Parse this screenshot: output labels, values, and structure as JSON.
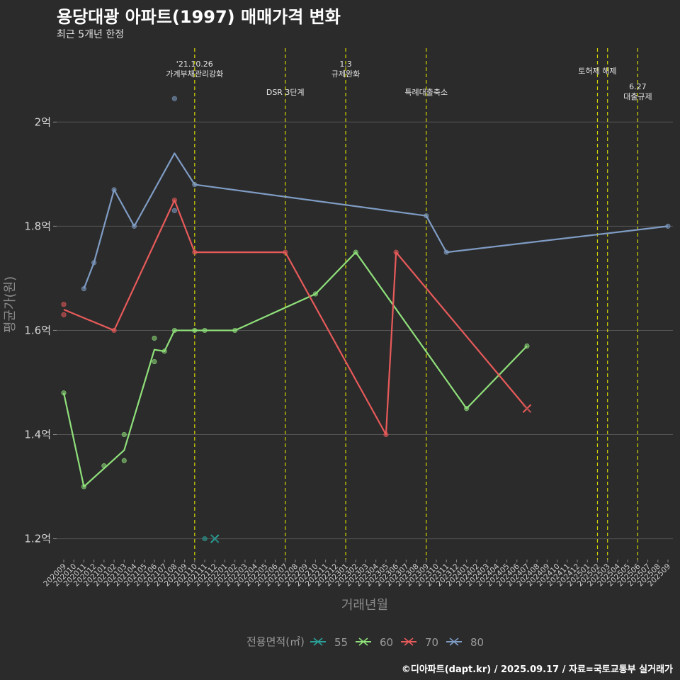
{
  "header": {
    "title": "용당대광 아파트(1997) 매매가격 변화",
    "subtitle": "최근 5개년 한정"
  },
  "caption": "©디아파트(dapt.kr) / 2025.09.17 / 자료=국토교통부 실거래가",
  "colors": {
    "background": "#2b2b2b",
    "grid": "#555555",
    "event_line": "#d4d400",
    "s55": "#2aa198",
    "s60": "#8fe07a",
    "s70": "#e85a5a",
    "s80": "#7f9cc4"
  },
  "chart_data": {
    "type": "line",
    "title": "용당대광 아파트(1997) 매매가격 변화",
    "subtitle": "최근 5개년 한정",
    "xlabel": "거래년월",
    "ylabel": "평균가(원)",
    "ylim": [
      1.16,
      2.15
    ],
    "yticks": [
      {
        "value": 1.2,
        "label": "1.2억"
      },
      {
        "value": 1.4,
        "label": "1.4억"
      },
      {
        "value": 1.6,
        "label": "1.6억"
      },
      {
        "value": 1.8,
        "label": "1.8억"
      },
      {
        "value": 2.0,
        "label": "2억"
      }
    ],
    "x_categories": [
      "202009",
      "202010",
      "202011",
      "202012",
      "202101",
      "202102",
      "202103",
      "202104",
      "202105",
      "202106",
      "202107",
      "202108",
      "202109",
      "202110",
      "202111",
      "202112",
      "202201",
      "202202",
      "202203",
      "202204",
      "202205",
      "202206",
      "202207",
      "202208",
      "202209",
      "202210",
      "202211",
      "202212",
      "202301",
      "202302",
      "202303",
      "202304",
      "202305",
      "202306",
      "202307",
      "202308",
      "202309",
      "202310",
      "202311",
      "202312",
      "202401",
      "202402",
      "202403",
      "202404",
      "202405",
      "202406",
      "202407",
      "202408",
      "202409",
      "202410",
      "202411",
      "202412",
      "202501",
      "202502",
      "202503",
      "202504",
      "202505",
      "202506",
      "202507",
      "202508",
      "202509"
    ],
    "legend_title": "전용면적(㎡)",
    "series": [
      {
        "name": "55",
        "color": "#2aa198",
        "line": [],
        "points": [
          {
            "x": "202111",
            "y": 1.2
          }
        ],
        "last": {
          "x": "202112",
          "y": 1.2
        }
      },
      {
        "name": "60",
        "color": "#8fe07a",
        "line": [
          [
            "202009",
            1.48
          ],
          [
            "202011",
            1.3
          ],
          [
            "202103",
            1.37
          ],
          [
            "202106",
            1.563
          ],
          [
            "202107",
            1.56
          ],
          [
            "202108",
            1.6
          ],
          [
            "202110",
            1.6
          ],
          [
            "202111",
            1.6
          ],
          [
            "202202",
            1.6
          ],
          [
            "202210",
            1.67
          ],
          [
            "202302",
            1.75
          ],
          [
            "202401",
            1.45
          ],
          [
            "202407",
            1.57
          ]
        ],
        "points": [
          [
            "202009",
            1.48
          ],
          [
            "202011",
            1.3
          ],
          [
            "202101",
            1.34
          ],
          [
            "202103",
            1.4
          ],
          [
            "202103",
            1.35
          ],
          [
            "202106",
            1.585
          ],
          [
            "202106",
            1.54
          ],
          [
            "202107",
            1.56
          ],
          [
            "202108",
            1.6
          ],
          [
            "202110",
            1.6
          ],
          [
            "202111",
            1.6
          ],
          [
            "202202",
            1.6
          ],
          [
            "202210",
            1.67
          ],
          [
            "202302",
            1.75
          ],
          [
            "202401",
            1.45
          ],
          [
            "202407",
            1.57
          ]
        ],
        "last": null
      },
      {
        "name": "70",
        "color": "#e85a5a",
        "line": [
          [
            "202009",
            1.64
          ],
          [
            "202102",
            1.6
          ],
          [
            "202108",
            1.85
          ],
          [
            "202110",
            1.75
          ],
          [
            "202207",
            1.75
          ],
          [
            "202305",
            1.4
          ],
          [
            "202306",
            1.75
          ],
          [
            "202407",
            1.45
          ]
        ],
        "points": [
          [
            "202009",
            1.65
          ],
          [
            "202009",
            1.63
          ],
          [
            "202102",
            1.6
          ],
          [
            "202108",
            1.85
          ],
          [
            "202110",
            1.75
          ],
          [
            "202207",
            1.75
          ],
          [
            "202305",
            1.4
          ],
          [
            "202306",
            1.75
          ]
        ],
        "last": {
          "x": "202407",
          "y": 1.45
        }
      },
      {
        "name": "80",
        "color": "#7f9cc4",
        "line": [
          [
            "202011",
            1.68
          ],
          [
            "202012",
            1.73
          ],
          [
            "202102",
            1.87
          ],
          [
            "202104",
            1.8
          ],
          [
            "202108",
            1.94
          ],
          [
            "202110",
            1.88
          ],
          [
            "202309",
            1.82
          ],
          [
            "202311",
            1.75
          ],
          [
            "202509",
            1.8
          ]
        ],
        "points": [
          [
            "202011",
            1.68
          ],
          [
            "202012",
            1.73
          ],
          [
            "202102",
            1.87
          ],
          [
            "202104",
            1.8
          ],
          [
            "202108",
            2.045
          ],
          [
            "202108",
            1.83
          ],
          [
            "202110",
            1.88
          ],
          [
            "202309",
            1.82
          ],
          [
            "202311",
            1.75
          ],
          [
            "202509",
            1.8
          ]
        ],
        "last": null
      }
    ],
    "events": [
      {
        "x": "202110",
        "lines": [
          "'21.10.26",
          "가계부채관리강화"
        ],
        "row": 0
      },
      {
        "x": "202207",
        "lines": [
          "DSR 3단계"
        ],
        "row": 2
      },
      {
        "x": "202301",
        "lines": [
          "1.3",
          "규제완화"
        ],
        "row": 0
      },
      {
        "x": "202309",
        "lines": [
          "특례대출축소"
        ],
        "row": 2
      },
      {
        "x": "202502",
        "lines": [
          "토허제 해제"
        ],
        "row": 1,
        "label_offset": 0
      },
      {
        "x": "202503",
        "lines": [],
        "row": 1
      },
      {
        "x": "202506",
        "lines": [
          "6.27",
          "대출규제"
        ],
        "row": 3
      }
    ]
  }
}
